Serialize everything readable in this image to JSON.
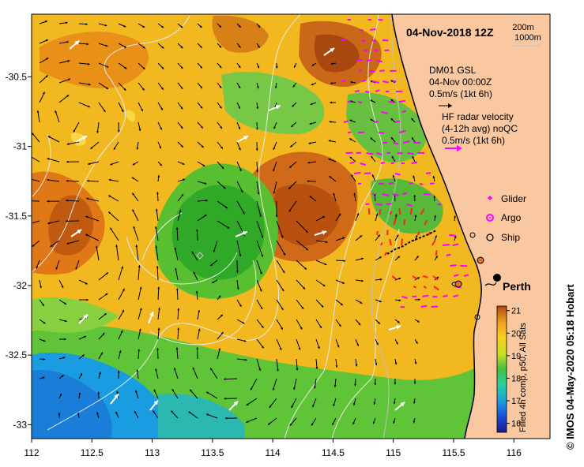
{
  "title": "04-Nov-2018 12Z",
  "depth_legend": {
    "line1": "200m",
    "line2": "1000m"
  },
  "model_legend": {
    "line1": "DM01 GSL",
    "line2": "04-Nov 00:00Z",
    "line3": "0.5m/s (1kt 6h)"
  },
  "radar_legend": {
    "line1": "HF radar velocity",
    "line2": "(4-12h avg) noQC",
    "line3": "0.5m/s (1kt 6h)"
  },
  "markers_legend": [
    {
      "label": "Glider",
      "color": "#ff00ff",
      "symbol": "diamond"
    },
    {
      "label": "Argo",
      "color": "#ff00ff",
      "symbol": "circle-dot"
    },
    {
      "label": "Ship",
      "color": "#000000",
      "symbol": "circle"
    }
  ],
  "city": "Perth",
  "colorbar": {
    "label": "Filled 4h comp, p50, All Sats",
    "ticks": [
      "21",
      "20",
      "19",
      "18",
      "17",
      "16"
    ],
    "min": 15.6,
    "max": 21.2
  },
  "credit": "© IMOS 04-May-2020 05:18 Hobart",
  "axes": {
    "x_ticks": [
      "112",
      "112.5",
      "113",
      "113.5",
      "114",
      "114.5",
      "115",
      "115.5",
      "116"
    ],
    "y_ticks": [
      "-30.5",
      "-31",
      "-31.5",
      "-32",
      "-32.5",
      "-33"
    ],
    "x_range": [
      112,
      116.3
    ],
    "y_range": [
      -33.1,
      -30.05
    ]
  },
  "colors": {
    "land": "#f9c7a0",
    "coast": "#000000",
    "model_arrow": "#000000",
    "radar_arrow": "#ff00ff",
    "radar_arrow_strong": "#ff2020",
    "contour": "#e8e8e8"
  }
}
